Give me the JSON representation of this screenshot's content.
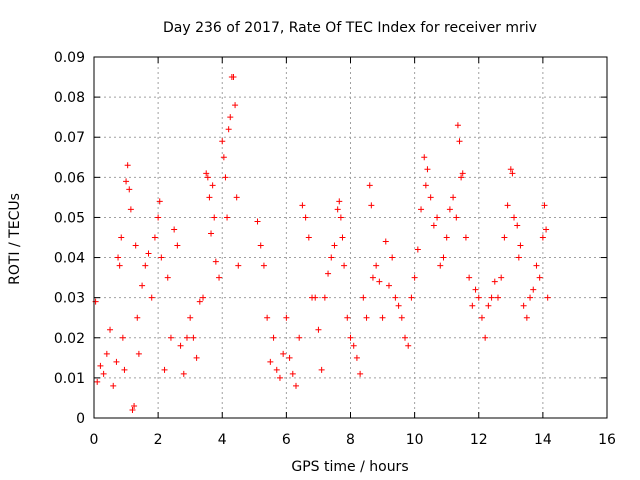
{
  "chart_data": {
    "type": "scatter",
    "title": "Day 236 of 2017, Rate Of TEC Index for receiver mriv",
    "xlabel": "GPS time / hours",
    "ylabel": "ROTI / TECUs",
    "xlim": [
      0,
      16
    ],
    "ylim": [
      0,
      0.09
    ],
    "x_ticks": [
      "0",
      "2",
      "4",
      "6",
      "8",
      "10",
      "12",
      "14",
      "16"
    ],
    "y_ticks": [
      "0",
      "0.01",
      "0.02",
      "0.03",
      "0.04",
      "0.05",
      "0.06",
      "0.07",
      "0.08",
      "0.09"
    ],
    "grid": true,
    "marker": "plus",
    "color": "#ff0000",
    "series": [
      {
        "name": "ROTI",
        "points": [
          [
            0.05,
            0.029
          ],
          [
            0.1,
            0.009
          ],
          [
            0.2,
            0.013
          ],
          [
            0.3,
            0.011
          ],
          [
            0.4,
            0.016
          ],
          [
            0.5,
            0.022
          ],
          [
            0.6,
            0.008
          ],
          [
            0.7,
            0.014
          ],
          [
            0.75,
            0.04
          ],
          [
            0.8,
            0.038
          ],
          [
            0.85,
            0.045
          ],
          [
            0.9,
            0.02
          ],
          [
            0.95,
            0.012
          ],
          [
            1.0,
            0.059
          ],
          [
            1.05,
            0.063
          ],
          [
            1.1,
            0.057
          ],
          [
            1.15,
            0.052
          ],
          [
            1.2,
            0.002
          ],
          [
            1.25,
            0.003
          ],
          [
            1.3,
            0.043
          ],
          [
            1.35,
            0.025
          ],
          [
            1.4,
            0.016
          ],
          [
            1.5,
            0.033
          ],
          [
            1.6,
            0.038
          ],
          [
            1.7,
            0.041
          ],
          [
            1.8,
            0.03
          ],
          [
            1.9,
            0.045
          ],
          [
            2.0,
            0.05
          ],
          [
            2.05,
            0.054
          ],
          [
            2.1,
            0.04
          ],
          [
            2.2,
            0.012
          ],
          [
            2.3,
            0.035
          ],
          [
            2.4,
            0.02
          ],
          [
            2.5,
            0.047
          ],
          [
            2.6,
            0.043
          ],
          [
            2.7,
            0.018
          ],
          [
            2.8,
            0.011
          ],
          [
            2.9,
            0.02
          ],
          [
            3.0,
            0.025
          ],
          [
            3.1,
            0.02
          ],
          [
            3.2,
            0.015
          ],
          [
            3.3,
            0.029
          ],
          [
            3.4,
            0.03
          ],
          [
            3.5,
            0.061
          ],
          [
            3.55,
            0.06
          ],
          [
            3.6,
            0.055
          ],
          [
            3.65,
            0.046
          ],
          [
            3.7,
            0.058
          ],
          [
            3.75,
            0.05
          ],
          [
            3.8,
            0.039
          ],
          [
            3.9,
            0.035
          ],
          [
            4.0,
            0.069
          ],
          [
            4.05,
            0.065
          ],
          [
            4.1,
            0.06
          ],
          [
            4.15,
            0.05
          ],
          [
            4.2,
            0.072
          ],
          [
            4.25,
            0.075
          ],
          [
            4.3,
            0.085
          ],
          [
            4.35,
            0.085
          ],
          [
            4.4,
            0.078
          ],
          [
            4.45,
            0.055
          ],
          [
            4.5,
            0.038
          ],
          [
            5.1,
            0.049
          ],
          [
            5.2,
            0.043
          ],
          [
            5.3,
            0.038
          ],
          [
            5.4,
            0.025
          ],
          [
            5.5,
            0.014
          ],
          [
            5.6,
            0.02
          ],
          [
            5.7,
            0.012
          ],
          [
            5.8,
            0.01
          ],
          [
            5.9,
            0.016
          ],
          [
            6.0,
            0.025
          ],
          [
            6.1,
            0.015
          ],
          [
            6.2,
            0.011
          ],
          [
            6.3,
            0.008
          ],
          [
            6.4,
            0.02
          ],
          [
            6.5,
            0.053
          ],
          [
            6.6,
            0.05
          ],
          [
            6.7,
            0.045
          ],
          [
            6.8,
            0.03
          ],
          [
            6.9,
            0.03
          ],
          [
            7.0,
            0.022
          ],
          [
            7.1,
            0.012
          ],
          [
            7.2,
            0.03
          ],
          [
            7.3,
            0.036
          ],
          [
            7.4,
            0.04
          ],
          [
            7.5,
            0.043
          ],
          [
            7.6,
            0.052
          ],
          [
            7.65,
            0.054
          ],
          [
            7.7,
            0.05
          ],
          [
            7.75,
            0.045
          ],
          [
            7.8,
            0.038
          ],
          [
            7.9,
            0.025
          ],
          [
            8.0,
            0.02
          ],
          [
            8.1,
            0.018
          ],
          [
            8.2,
            0.015
          ],
          [
            8.3,
            0.011
          ],
          [
            8.4,
            0.03
          ],
          [
            8.5,
            0.025
          ],
          [
            8.6,
            0.058
          ],
          [
            8.65,
            0.053
          ],
          [
            8.7,
            0.035
          ],
          [
            8.8,
            0.038
          ],
          [
            8.9,
            0.034
          ],
          [
            9.0,
            0.025
          ],
          [
            9.1,
            0.044
          ],
          [
            9.2,
            0.033
          ],
          [
            9.3,
            0.04
          ],
          [
            9.4,
            0.03
          ],
          [
            9.5,
            0.028
          ],
          [
            9.6,
            0.025
          ],
          [
            9.7,
            0.02
          ],
          [
            9.8,
            0.018
          ],
          [
            9.9,
            0.03
          ],
          [
            10.0,
            0.035
          ],
          [
            10.1,
            0.042
          ],
          [
            10.2,
            0.052
          ],
          [
            10.3,
            0.065
          ],
          [
            10.35,
            0.058
          ],
          [
            10.4,
            0.062
          ],
          [
            10.5,
            0.055
          ],
          [
            10.6,
            0.048
          ],
          [
            10.7,
            0.05
          ],
          [
            10.8,
            0.038
          ],
          [
            10.9,
            0.04
          ],
          [
            11.0,
            0.045
          ],
          [
            11.1,
            0.052
          ],
          [
            11.2,
            0.055
          ],
          [
            11.3,
            0.05
          ],
          [
            11.35,
            0.073
          ],
          [
            11.4,
            0.069
          ],
          [
            11.45,
            0.06
          ],
          [
            11.5,
            0.061
          ],
          [
            11.6,
            0.045
          ],
          [
            11.7,
            0.035
          ],
          [
            11.8,
            0.028
          ],
          [
            11.9,
            0.032
          ],
          [
            12.0,
            0.03
          ],
          [
            12.1,
            0.025
          ],
          [
            12.2,
            0.02
          ],
          [
            12.3,
            0.028
          ],
          [
            12.4,
            0.03
          ],
          [
            12.5,
            0.034
          ],
          [
            12.6,
            0.03
          ],
          [
            12.7,
            0.035
          ],
          [
            12.8,
            0.045
          ],
          [
            12.9,
            0.053
          ],
          [
            13.0,
            0.062
          ],
          [
            13.05,
            0.061
          ],
          [
            13.1,
            0.05
          ],
          [
            13.2,
            0.048
          ],
          [
            13.25,
            0.04
          ],
          [
            13.3,
            0.043
          ],
          [
            13.4,
            0.028
          ],
          [
            13.5,
            0.025
          ],
          [
            13.6,
            0.03
          ],
          [
            13.7,
            0.032
          ],
          [
            13.8,
            0.038
          ],
          [
            13.9,
            0.035
          ],
          [
            14.0,
            0.045
          ],
          [
            14.05,
            0.053
          ],
          [
            14.1,
            0.047
          ],
          [
            14.15,
            0.03
          ]
        ]
      }
    ]
  }
}
